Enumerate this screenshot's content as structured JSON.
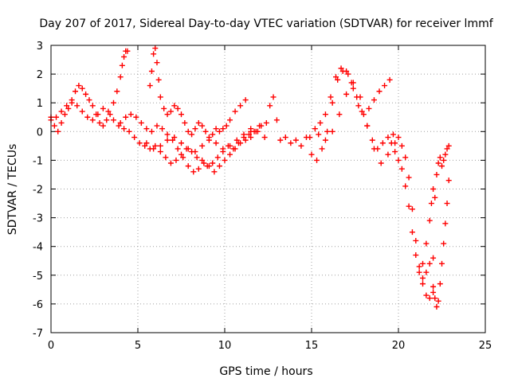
{
  "chart_data": {
    "type": "scatter",
    "title": "Day 207 of 2017, Sidereal Day-to-day VTEC variation (SDTVAR) for receiver lmmf",
    "xlabel": "GPS time / hours",
    "ylabel": "SDTVAR / TECUs",
    "xlim": [
      0,
      25
    ],
    "ylim": [
      -7,
      3
    ],
    "xticks": [
      "0",
      "5",
      "10",
      "15",
      "20",
      "25"
    ],
    "yticks": [
      "-7",
      "-6",
      "-5",
      "-4",
      "-3",
      "-2",
      "-1",
      "0",
      "1",
      "2",
      "3"
    ],
    "grid": true,
    "marker": "+",
    "color": "#ff0000",
    "series": [
      {
        "x": [
          0.0,
          0.2,
          0.4,
          0.6,
          0.8,
          1.0,
          1.2,
          1.4,
          1.6,
          1.8,
          2.0,
          2.2,
          2.4,
          2.6,
          2.8,
          3.0,
          3.2,
          3.4,
          3.6,
          3.8,
          4.0,
          4.1,
          4.2,
          4.3,
          4.4
        ],
        "y": [
          0.5,
          0.2,
          0.0,
          0.3,
          0.6,
          0.8,
          1.1,
          1.4,
          1.6,
          1.5,
          1.3,
          1.1,
          0.9,
          0.6,
          0.3,
          0.2,
          0.4,
          0.6,
          1.0,
          1.4,
          1.9,
          2.3,
          2.6,
          2.8,
          2.8
        ]
      },
      {
        "x": [
          0.0,
          0.3,
          0.6,
          0.9,
          1.2,
          1.5,
          1.8,
          2.1,
          2.4,
          2.7,
          3.0,
          3.3,
          3.6,
          3.9,
          4.2,
          4.5,
          4.8,
          5.1,
          5.4,
          5.7,
          6.0,
          6.3,
          6.6,
          6.9,
          7.2,
          7.5,
          7.8,
          8.1,
          8.4,
          8.7,
          9.0,
          9.3,
          9.6,
          9.9,
          10.2,
          10.5,
          10.8,
          11.1,
          11.4,
          11.7,
          12.0
        ],
        "y": [
          0.4,
          0.5,
          0.7,
          0.9,
          1.0,
          0.9,
          0.7,
          0.5,
          0.4,
          0.6,
          0.8,
          0.7,
          0.4,
          0.2,
          0.1,
          0.0,
          -0.2,
          -0.4,
          -0.5,
          -0.6,
          -0.5,
          -0.7,
          -0.9,
          -1.1,
          -1.0,
          -0.8,
          -0.6,
          -0.7,
          -0.9,
          -1.0,
          -1.2,
          -1.1,
          -0.9,
          -0.7,
          -0.5,
          -0.6,
          -0.4,
          -0.2,
          -0.1,
          0.0,
          0.2
        ]
      },
      {
        "x": [
          4.0,
          4.3,
          4.6,
          4.9,
          5.2,
          5.5,
          5.8,
          6.1,
          6.4,
          6.7,
          7.0,
          7.3,
          7.6,
          7.9,
          8.2,
          8.5,
          8.8,
          9.1,
          9.4,
          9.7,
          10.0,
          10.3,
          10.6,
          10.9,
          11.2,
          11.5,
          11.8,
          12.1,
          12.4
        ],
        "y": [
          0.3,
          0.5,
          0.6,
          0.5,
          0.3,
          0.1,
          0.0,
          0.2,
          0.1,
          -0.1,
          -0.3,
          -0.6,
          -0.9,
          -1.2,
          -1.4,
          -1.3,
          -1.1,
          -1.2,
          -1.4,
          -1.2,
          -1.0,
          -0.8,
          -0.6,
          -0.4,
          -0.3,
          -0.2,
          0.0,
          0.2,
          0.3
        ]
      },
      {
        "x": [
          5.7,
          5.8,
          5.9,
          6.0,
          6.1,
          6.2,
          6.3,
          6.5,
          6.7,
          6.9,
          7.1,
          7.3,
          7.5,
          7.7,
          7.9,
          8.1,
          8.3,
          8.5,
          8.7,
          8.9,
          9.1,
          9.3,
          9.5,
          9.7,
          9.9,
          10.1,
          10.3,
          10.6,
          10.9,
          11.2
        ],
        "y": [
          1.6,
          2.1,
          2.7,
          2.9,
          2.4,
          1.8,
          1.2,
          0.8,
          0.6,
          0.7,
          0.9,
          0.8,
          0.6,
          0.3,
          0.0,
          -0.1,
          0.1,
          0.3,
          0.2,
          0.0,
          -0.2,
          -0.1,
          0.1,
          0.0,
          0.1,
          0.2,
          0.4,
          0.7,
          0.9,
          1.1
        ]
      },
      {
        "x": [
          5.5,
          5.9,
          6.3,
          6.7,
          7.1,
          7.5,
          7.9,
          8.3,
          8.7,
          9.1,
          9.5,
          9.9,
          10.3,
          10.7,
          11.1,
          11.5
        ],
        "y": [
          -0.4,
          -0.6,
          -0.5,
          -0.3,
          -0.2,
          -0.4,
          -0.6,
          -0.7,
          -0.5,
          -0.3,
          -0.4,
          -0.6,
          -0.5,
          -0.3,
          -0.1,
          0.0
        ]
      },
      {
        "x": [
          11.5,
          11.9,
          12.3,
          12.6,
          12.8,
          13.0,
          13.2,
          13.5,
          13.8,
          14.1,
          14.4,
          14.7,
          15.0,
          15.3,
          15.6,
          15.9,
          16.2,
          16.5,
          16.8,
          17.1,
          17.4,
          17.7,
          18.0,
          18.3,
          18.6,
          18.9,
          19.2,
          19.5
        ],
        "y": [
          0.1,
          0.0,
          -0.2,
          0.9,
          1.2,
          0.4,
          -0.3,
          -0.2,
          -0.4,
          -0.3,
          -0.5,
          -0.2,
          -0.8,
          -1.0,
          -0.6,
          0.0,
          1.0,
          1.8,
          2.1,
          2.0,
          1.5,
          0.9,
          0.6,
          0.8,
          1.1,
          1.4,
          1.6,
          1.8
        ]
      },
      {
        "x": [
          14.9,
          15.2,
          15.5,
          15.8,
          16.1,
          16.4,
          16.7,
          17.0,
          17.3,
          17.6,
          17.9,
          18.2,
          18.5,
          18.8,
          19.1,
          19.4,
          19.7,
          20.0
        ],
        "y": [
          -0.2,
          0.1,
          0.3,
          0.6,
          1.2,
          1.9,
          2.2,
          2.1,
          1.7,
          1.2,
          0.7,
          0.2,
          -0.3,
          -0.6,
          -0.4,
          -0.2,
          -0.1,
          -0.2
        ]
      },
      {
        "x": [
          15.4,
          15.8,
          16.2,
          16.6,
          17.0,
          17.4,
          17.8,
          18.2,
          18.6,
          19.0,
          19.4,
          19.8,
          20.2,
          20.4,
          20.6,
          20.8,
          21.0,
          21.2,
          21.4,
          21.6,
          21.8,
          22.0
        ],
        "y": [
          -0.1,
          -0.3,
          0.0,
          0.6,
          1.3,
          1.7,
          1.2,
          0.2,
          -0.6,
          -1.1,
          -0.8,
          -0.4,
          -0.5,
          -0.9,
          -1.6,
          -2.7,
          -3.8,
          -4.7,
          -5.3,
          -5.7,
          -5.8,
          -5.6
        ]
      },
      {
        "x": [
          19.6,
          19.8,
          20.0,
          20.2,
          20.4,
          20.6,
          20.8,
          21.0,
          21.2,
          21.4,
          21.6,
          21.8,
          22.0
        ],
        "y": [
          -0.4,
          -0.7,
          -1.0,
          -1.3,
          -1.9,
          -2.6,
          -3.5,
          -4.3,
          -4.9,
          -5.1,
          -4.9,
          -4.6,
          -4.4
        ]
      },
      {
        "x": [
          21.4,
          21.6,
          21.8,
          21.9,
          22.0,
          22.1,
          22.2,
          22.3,
          22.4,
          22.5,
          22.6,
          22.7,
          22.8,
          22.9
        ],
        "y": [
          -4.6,
          -3.9,
          -3.1,
          -2.5,
          -2.0,
          -2.3,
          -1.5,
          -1.1,
          -0.9,
          -1.2,
          -1.0,
          -0.8,
          -0.6,
          -0.5
        ]
      },
      {
        "x": [
          22.0,
          22.1,
          22.2,
          22.3,
          22.4,
          22.5,
          22.6,
          22.7,
          22.8,
          22.9
        ],
        "y": [
          -5.4,
          -5.8,
          -6.1,
          -5.9,
          -5.3,
          -4.6,
          -3.9,
          -3.2,
          -2.5,
          -1.7
        ]
      }
    ]
  }
}
